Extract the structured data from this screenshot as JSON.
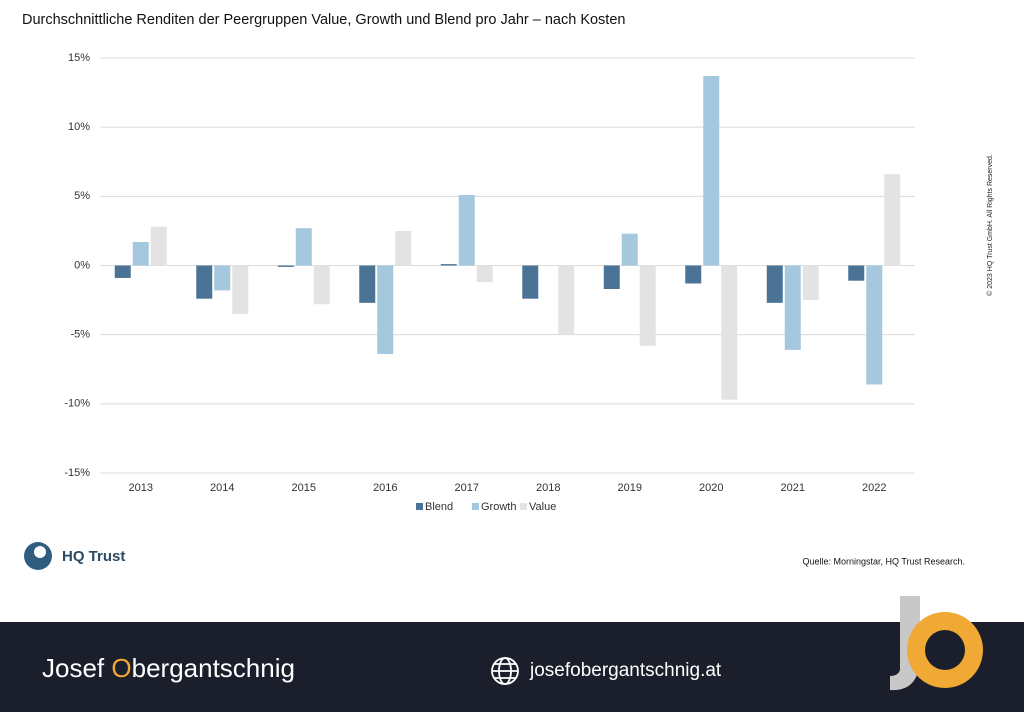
{
  "chart_data": {
    "type": "bar",
    "title": "Durchschnittliche Renditen der Peergruppen Value, Growth und Blend pro Jahr – nach Kosten",
    "categories": [
      "2013",
      "2014",
      "2015",
      "2016",
      "2017",
      "2018",
      "2019",
      "2020",
      "2021",
      "2022"
    ],
    "series": [
      {
        "name": "Blend",
        "color": "#4a7396",
        "values": [
          -0.9,
          -2.4,
          -0.1,
          -2.7,
          0.1,
          -2.4,
          -1.7,
          -1.3,
          -2.7,
          -1.1
        ]
      },
      {
        "name": "Growth",
        "color": "#a6c8de",
        "values": [
          1.7,
          -1.8,
          2.7,
          -6.4,
          5.1,
          0,
          2.3,
          13.7,
          -6.1,
          -8.6
        ]
      },
      {
        "name": "Value",
        "color": "#e3e3e3",
        "values": [
          2.8,
          -3.5,
          -2.8,
          2.5,
          -1.2,
          -5.0,
          -5.8,
          -9.7,
          -2.5,
          6.6
        ]
      }
    ],
    "ylim": [
      -15,
      15
    ],
    "yticks": [
      {
        "value": -15,
        "label": "-15%"
      },
      {
        "value": -10,
        "label": "-10%"
      },
      {
        "value": -5,
        "label": "-5%"
      },
      {
        "value": 0,
        "label": "0%"
      },
      {
        "value": 5,
        "label": "5%"
      },
      {
        "value": 10,
        "label": "10%"
      },
      {
        "value": 15,
        "label": "15%"
      }
    ],
    "grid": true,
    "legend": "bottom",
    "source": "Quelle: Morningstar, HQ Trust Research.",
    "copyright": "© 2023 HQ Trust GmbH. All Rights Reserved."
  },
  "logo": "HQ Trust",
  "footer": {
    "name_parts": [
      "Josef ",
      "O",
      "bergantschnig"
    ],
    "website": "josefobergantschnig.at"
  }
}
